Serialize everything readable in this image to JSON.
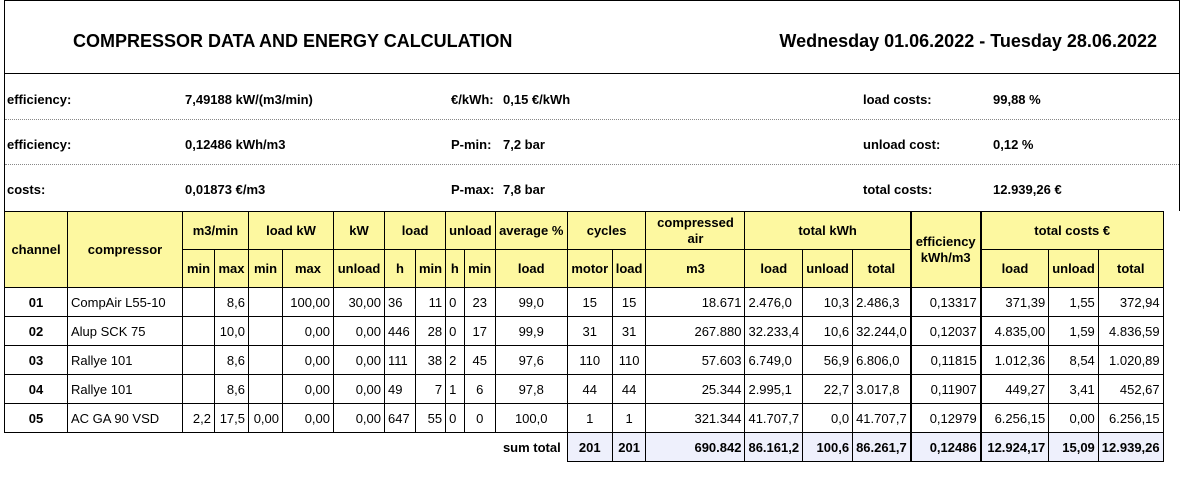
{
  "header": {
    "title": "COMPRESSOR DATA AND ENERGY CALCULATION",
    "date_range": "Wednesday 01.06.2022 - Tuesday 28.06.2022"
  },
  "info": {
    "row1": {
      "label1": "efficiency:",
      "value1": "7,49188 kW/(m3/min)",
      "label2": "€/kWh:",
      "value2": "0,15 €/kWh",
      "label3": "load costs:",
      "value3": "99,88 %"
    },
    "row2": {
      "label1": "efficiency:",
      "value1": "0,12486 kWh/m3",
      "label2": "P-min:",
      "value2": "7,2 bar",
      "label3": "unload cost:",
      "value3": "0,12 %"
    },
    "row3": {
      "label1": "costs:",
      "value1": "0,01873 €/m3",
      "label2": "P-max:",
      "value2": "7,8 bar",
      "label3": "total costs:",
      "value3": "12.939,26 €"
    }
  },
  "table": {
    "headers": {
      "channel": "channel",
      "compressor": "compressor",
      "m3min": "m3/min",
      "loadkw": "load kW",
      "kw": "kW",
      "load": "load",
      "unload": "unload",
      "average": "average %",
      "cycles": "cycles",
      "compressed_air": "compressed air",
      "total_kwh": "total kWh",
      "efficiency": "efficiency kWh/m3",
      "total_costs": "total costs €",
      "min": "min",
      "max": "max",
      "kw_unload": "unload",
      "h": "h",
      "avg_load": "load",
      "motor": "motor",
      "cyc_load": "load",
      "m3": "m3",
      "kwh_load": "load",
      "kwh_unload": "unload",
      "kwh_total": "total",
      "cost_load": "load",
      "cost_unload": "unload",
      "cost_total": "total"
    },
    "rows": [
      {
        "channel": "01",
        "compressor": "CompAir L55-10",
        "m3min_min": "",
        "m3min_max": "8,6",
        "loadkw_min": "",
        "loadkw_max": "100,00",
        "kw_unload": "30,00",
        "load_h": "36",
        "load_min": "11",
        "unload_h": "0",
        "unload_min": "23",
        "avg": "99,0",
        "motor": "15",
        "cyc_load": "15",
        "m3": "18.671",
        "kwh_load": "2.476,0",
        "kwh_unload": "10,3",
        "kwh_total": "2.486,3",
        "eff": "0,13317",
        "cost_load": "371,39",
        "cost_unload": "1,55",
        "cost_total": "372,94"
      },
      {
        "channel": "02",
        "compressor": "Alup SCK 75",
        "m3min_min": "",
        "m3min_max": "10,0",
        "loadkw_min": "",
        "loadkw_max": "0,00",
        "kw_unload": "0,00",
        "load_h": "446",
        "load_min": "28",
        "unload_h": "0",
        "unload_min": "17",
        "avg": "99,9",
        "motor": "31",
        "cyc_load": "31",
        "m3": "267.880",
        "kwh_load": "32.233,4",
        "kwh_unload": "10,6",
        "kwh_total": "32.244,0",
        "eff": "0,12037",
        "cost_load": "4.835,00",
        "cost_unload": "1,59",
        "cost_total": "4.836,59"
      },
      {
        "channel": "03",
        "compressor": "Rallye 101",
        "m3min_min": "",
        "m3min_max": "8,6",
        "loadkw_min": "",
        "loadkw_max": "0,00",
        "kw_unload": "0,00",
        "load_h": "111",
        "load_min": "38",
        "unload_h": "2",
        "unload_min": "45",
        "avg": "97,6",
        "motor": "110",
        "cyc_load": "110",
        "m3": "57.603",
        "kwh_load": "6.749,0",
        "kwh_unload": "56,9",
        "kwh_total": "6.806,0",
        "eff": "0,11815",
        "cost_load": "1.012,36",
        "cost_unload": "8,54",
        "cost_total": "1.020,89"
      },
      {
        "channel": "04",
        "compressor": "Rallye 101",
        "m3min_min": "",
        "m3min_max": "8,6",
        "loadkw_min": "",
        "loadkw_max": "0,00",
        "kw_unload": "0,00",
        "load_h": "49",
        "load_min": "7",
        "unload_h": "1",
        "unload_min": "6",
        "avg": "97,8",
        "motor": "44",
        "cyc_load": "44",
        "m3": "25.344",
        "kwh_load": "2.995,1",
        "kwh_unload": "22,7",
        "kwh_total": "3.017,8",
        "eff": "0,11907",
        "cost_load": "449,27",
        "cost_unload": "3,41",
        "cost_total": "452,67"
      },
      {
        "channel": "05",
        "compressor": "AC GA 90 VSD",
        "m3min_min": "2,2",
        "m3min_max": "17,5",
        "loadkw_min": "0,00",
        "loadkw_max": "0,00",
        "kw_unload": "0,00",
        "load_h": "647",
        "load_min": "55",
        "unload_h": "0",
        "unload_min": "0",
        "avg": "100,0",
        "motor": "1",
        "cyc_load": "1",
        "m3": "321.344",
        "kwh_load": "41.707,7",
        "kwh_unload": "0,0",
        "kwh_total": "41.707,7",
        "eff": "0,12979",
        "cost_load": "6.256,15",
        "cost_unload": "0,00",
        "cost_total": "6.256,15"
      }
    ],
    "sum": {
      "label": "sum total",
      "motor": "201",
      "cyc_load": "201",
      "m3": "690.842",
      "kwh_load": "86.161,2",
      "kwh_unload": "100,6",
      "kwh_total": "86.261,7",
      "eff": "0,12486",
      "cost_load": "12.924,17",
      "cost_unload": "15,09",
      "cost_total": "12.939,26"
    }
  }
}
